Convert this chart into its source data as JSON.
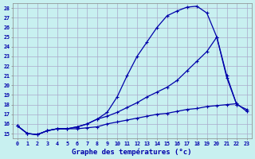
{
  "xlabel": "Graphe des températures (°c)",
  "bg_color": "#c8f0f0",
  "grid_color": "#aaaacc",
  "line_color": "#0000aa",
  "xlim": [
    -0.5,
    23.5
  ],
  "ylim": [
    14.5,
    28.5
  ],
  "yticks": [
    15,
    16,
    17,
    18,
    19,
    20,
    21,
    22,
    23,
    24,
    25,
    26,
    27,
    28
  ],
  "xticks": [
    0,
    1,
    2,
    3,
    4,
    5,
    6,
    7,
    8,
    9,
    10,
    11,
    12,
    13,
    14,
    15,
    16,
    17,
    18,
    19,
    20,
    21,
    22,
    23
  ],
  "hours": [
    0,
    1,
    2,
    3,
    4,
    5,
    6,
    7,
    8,
    9,
    10,
    11,
    12,
    13,
    14,
    15,
    16,
    17,
    18,
    19,
    20,
    21,
    22,
    23
  ],
  "line1": [
    15.8,
    15.0,
    14.9,
    15.3,
    15.5,
    15.5,
    15.5,
    15.6,
    15.7,
    16.0,
    16.2,
    16.4,
    16.6,
    16.8,
    17.0,
    17.1,
    17.3,
    17.5,
    17.6,
    17.8,
    17.9,
    18.0,
    18.1,
    17.3
  ],
  "line2": [
    15.8,
    15.0,
    14.9,
    15.3,
    15.5,
    15.5,
    15.7,
    16.0,
    16.5,
    17.2,
    18.8,
    21.0,
    23.0,
    24.5,
    26.0,
    27.2,
    27.7,
    28.1,
    28.2,
    27.5,
    25.0,
    21.0,
    18.0,
    null
  ],
  "line3": [
    15.8,
    15.0,
    14.9,
    15.3,
    15.5,
    15.5,
    15.7,
    16.0,
    16.5,
    16.8,
    17.2,
    17.7,
    18.2,
    18.8,
    19.3,
    19.8,
    20.5,
    21.5,
    22.5,
    23.5,
    25.0,
    20.8,
    18.0,
    17.5
  ]
}
